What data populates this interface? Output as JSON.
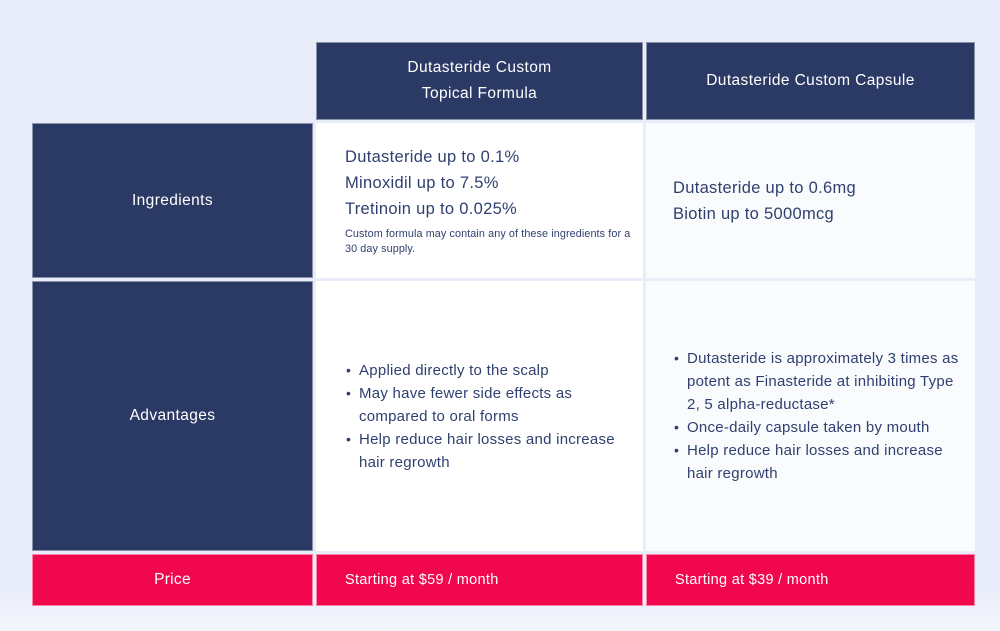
{
  "colors": {
    "page_background": "#e9edfa",
    "navy": "#2b3965",
    "red": "#f1074d",
    "cell_background": "#ffffff",
    "cell_background_alt": "#fafbfd",
    "body_text": "#2f3f70",
    "header_text": "#ffffff"
  },
  "table": {
    "columns": [
      {
        "header_lines": [
          "Dutasteride Custom",
          "Topical Formula"
        ]
      },
      {
        "header_lines": [
          "Dutasteride Custom Capsule"
        ]
      }
    ],
    "rows": [
      {
        "label": "Ingredients",
        "col1": {
          "lines": [
            "Dutasteride up to 0.1%",
            "Minoxidil up to 7.5%",
            "Tretinoin up to 0.025%"
          ],
          "note": "Custom formula may contain any of these ingredients for a 30 day supply."
        },
        "col2": {
          "lines": [
            "Dutasteride up to 0.6mg",
            "Biotin up to 5000mcg"
          ]
        }
      },
      {
        "label": "Advantages",
        "col1": {
          "bullets": [
            "Applied directly to the scalp",
            "May have fewer side effects as compared to oral forms",
            "Help reduce hair losses and increase hair regrowth"
          ]
        },
        "col2": {
          "bullets": [
            "Dutasteride is approximately 3 times as potent as Finasteride at inhibiting Type 2, 5 alpha-reductase*",
            "Once-daily capsule taken by mouth",
            "Help reduce hair losses and increase hair regrowth"
          ]
        }
      },
      {
        "label": "Price",
        "col1": {
          "text": "Starting at $59 / month"
        },
        "col2": {
          "text": "Starting at $39 / month"
        }
      }
    ]
  }
}
